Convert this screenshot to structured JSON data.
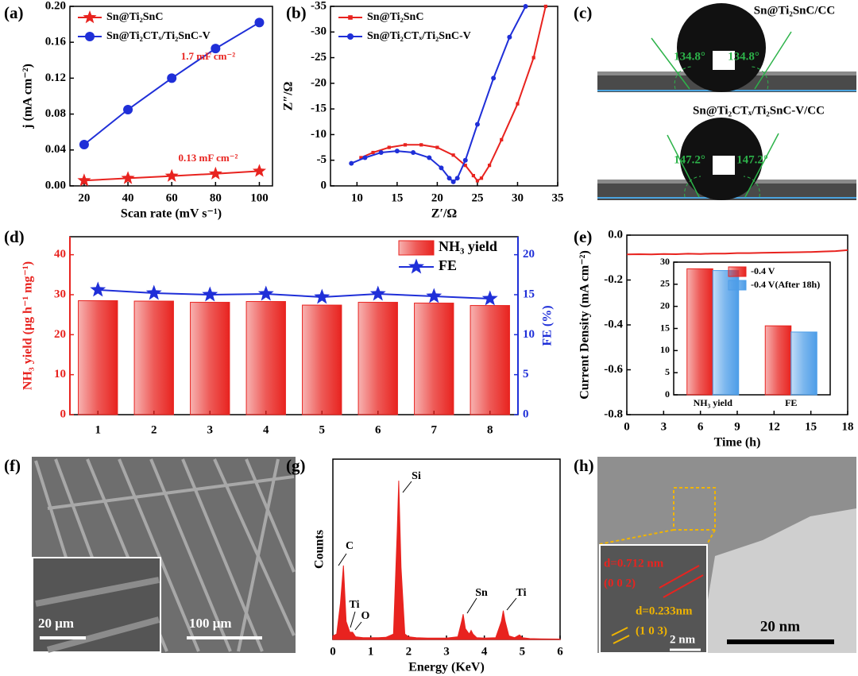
{
  "chart_data": [
    {
      "panel": "(a)",
      "type": "line",
      "xlabel": "Scan rate (mV s⁻¹)",
      "ylabel": "j (mA cm⁻²)",
      "xlim": [
        13.5,
        106
      ],
      "ylim": [
        0,
        0.2
      ],
      "xticks": [
        20,
        40,
        60,
        80,
        100
      ],
      "yticks": [
        {
          "value": 0,
          "label": "0.00"
        },
        0.04,
        0.08,
        0.12,
        0.16,
        {
          "value": 0.2,
          "label": "0.20"
        }
      ],
      "legend": "upper left",
      "series": [
        {
          "name": "Sn@Ti₂SnC",
          "color": "#e8231f",
          "marker": "star",
          "x": [
            20,
            40,
            60,
            80,
            100
          ],
          "values": [
            0.006,
            0.0085,
            0.011,
            0.0135,
            0.0165
          ]
        },
        {
          "name": "Sn@Ti₂CTₓ/Ti₂SnC-V",
          "color": "#1f2fd8",
          "marker": "circle",
          "x": [
            20,
            40,
            60,
            80,
            100
          ],
          "values": [
            0.046,
            0.085,
            0.12,
            0.153,
            0.182
          ]
        }
      ],
      "annotations": [
        "1.7 mF cm⁻²",
        "0.13 mF cm⁻²"
      ]
    },
    {
      "panel": "(b)",
      "type": "line",
      "xlabel": "Z′/Ω",
      "ylabel": "Z″/Ω",
      "xlim": [
        6.7,
        35
      ],
      "ylim": [
        0,
        -35
      ],
      "xticks": [
        10,
        15,
        20,
        25,
        30,
        35
      ],
      "yticks": [
        0,
        -5,
        -10,
        -15,
        -20,
        -25,
        -30,
        -35
      ],
      "legend": "upper left",
      "series": [
        {
          "name": "Sn@Ti₂SnC",
          "color": "#e8231f",
          "marker": "square",
          "x": [
            10.5,
            12,
            14,
            16,
            18,
            20,
            22,
            23.5,
            24.5,
            25,
            25.5,
            26.5,
            28,
            30,
            32,
            33.5
          ],
          "values": [
            -5.5,
            -6.5,
            -7.5,
            -8,
            -8,
            -7.5,
            -6,
            -4,
            -2,
            -1,
            -1.5,
            -4,
            -9,
            -16,
            -25,
            -35
          ]
        },
        {
          "name": "Sn@Ti₂CTₓ/Ti₂SnC-V",
          "color": "#1f2fd8",
          "marker": "circle",
          "x": [
            9.3,
            11,
            13,
            15,
            17,
            19,
            20.5,
            21.5,
            22,
            22.5,
            23.5,
            25,
            27,
            29,
            31
          ],
          "values": [
            -4.4,
            -5.5,
            -6.5,
            -6.8,
            -6.5,
            -5.5,
            -3.5,
            -1.5,
            -0.8,
            -1.5,
            -5,
            -12,
            -21,
            -29,
            -35
          ]
        }
      ]
    },
    {
      "panel": "(d)",
      "type": "bar",
      "ylabel": "NH₃ yield (μg h⁻¹ mg⁻¹)",
      "y2label": "FE (%)",
      "categories": [
        "1",
        "2",
        "3",
        "4",
        "5",
        "6",
        "7",
        "8"
      ],
      "ylim": [
        0,
        44.5
      ],
      "yticks": [
        0,
        10,
        20,
        30,
        40
      ],
      "y2lim": [
        0,
        22.25
      ],
      "y2ticks": [
        0,
        5,
        10,
        15,
        20
      ],
      "legend": "upper right",
      "series": [
        {
          "name": "NH₃ yield",
          "color": "#e8231f",
          "values": [
            28.5,
            28.4,
            28.1,
            28.3,
            27.4,
            28.1,
            27.9,
            27.3
          ]
        },
        {
          "name": "FE",
          "color": "#1f2fd8",
          "marker": "star",
          "axis": "y2",
          "values": [
            15.6,
            15.2,
            15.0,
            15.1,
            14.7,
            15.1,
            14.8,
            14.5
          ]
        }
      ]
    },
    {
      "panel": "(e)",
      "type": "line",
      "xlabel": "Time (h)",
      "ylabel": "Current Density (mA cm⁻²)",
      "xlim": [
        0,
        18
      ],
      "ylim": [
        -0.8,
        0
      ],
      "xticks": [
        0,
        3,
        6,
        9,
        12,
        15,
        18
      ],
      "yticks": [
        {
          "value": 0,
          "label": "0.0"
        },
        -0.2,
        -0.4,
        -0.6,
        -0.8
      ],
      "series": [
        {
          "color": "#e8231f",
          "x": [
            0,
            1,
            2,
            3,
            4,
            5,
            6,
            7,
            8,
            9,
            10,
            11,
            12,
            13,
            14,
            15,
            16,
            17,
            18
          ],
          "values": [
            -0.086,
            -0.085,
            -0.086,
            -0.084,
            -0.085,
            -0.083,
            -0.084,
            -0.082,
            -0.082,
            -0.08,
            -0.08,
            -0.079,
            -0.078,
            -0.077,
            -0.076,
            -0.075,
            -0.073,
            -0.071,
            -0.067
          ]
        }
      ],
      "inset": {
        "type": "bar",
        "categories": [
          "NH₃ yield",
          "FE"
        ],
        "ylim": [
          0,
          30
        ],
        "yticks": [
          0,
          5,
          10,
          15,
          20,
          25,
          30
        ],
        "legend": "upper right",
        "series": [
          {
            "name": "-0.4 V",
            "color": "#e8231f",
            "values": [
              28.5,
              15.6
            ]
          },
          {
            "name": "-0.4 V(After 18h)",
            "color": "#4d9de8",
            "values": [
              28.1,
              14.2
            ]
          }
        ]
      }
    },
    {
      "panel": "(g)",
      "type": "area",
      "xlabel": "Energy (KeV)",
      "ylabel": "Counts",
      "xlim": [
        0,
        6
      ],
      "ylim": [
        0,
        100
      ],
      "xticks": [
        0,
        1,
        2,
        3,
        4,
        5,
        6
      ],
      "series": [
        {
          "color": "#e8231f",
          "x": [
            0,
            0.1,
            0.2,
            0.28,
            0.35,
            0.45,
            0.52,
            0.6,
            0.8,
            1.0,
            1.2,
            1.4,
            1.6,
            1.7,
            1.74,
            1.8,
            1.9,
            2.0,
            2.2,
            2.5,
            3.0,
            3.3,
            3.4,
            3.44,
            3.5,
            3.6,
            3.65,
            3.7,
            3.8,
            4.0,
            4.3,
            4.45,
            4.5,
            4.55,
            4.65,
            4.8,
            4.93,
            5.0,
            5.2,
            5.5,
            6.0
          ],
          "values": [
            2,
            3,
            20,
            41,
            10,
            4,
            4,
            1.5,
            1,
            1,
            1,
            1.2,
            3,
            60,
            88,
            40,
            3,
            1.5,
            1,
            0.8,
            0.8,
            1.5,
            10,
            14,
            6,
            3,
            5,
            3,
            1,
            0.8,
            1,
            10,
            16,
            10,
            2,
            1,
            2.5,
            1,
            0.5,
            0.3,
            0.2
          ]
        }
      ],
      "annotations": [
        "C",
        "Ti",
        "O",
        "Si",
        "Sn",
        "Ti"
      ]
    }
  ],
  "images": [
    {
      "panel": "(c)",
      "labels": [
        "Sn@Ti₂SnC/CC",
        "134.8°",
        "134.8°",
        "Sn@Ti₂CTₓ/Ti₂SnC-V/CC",
        "147.2°",
        "147.2°"
      ]
    },
    {
      "panel": "(f)",
      "labels": [
        "20 μm",
        "100 μm"
      ]
    },
    {
      "panel": "(h)",
      "labels": [
        "d=0.712 nm",
        "(0 0 2)",
        "d=0.233nm",
        "(1 0 3)",
        "2 nm",
        "20 nm"
      ]
    }
  ]
}
